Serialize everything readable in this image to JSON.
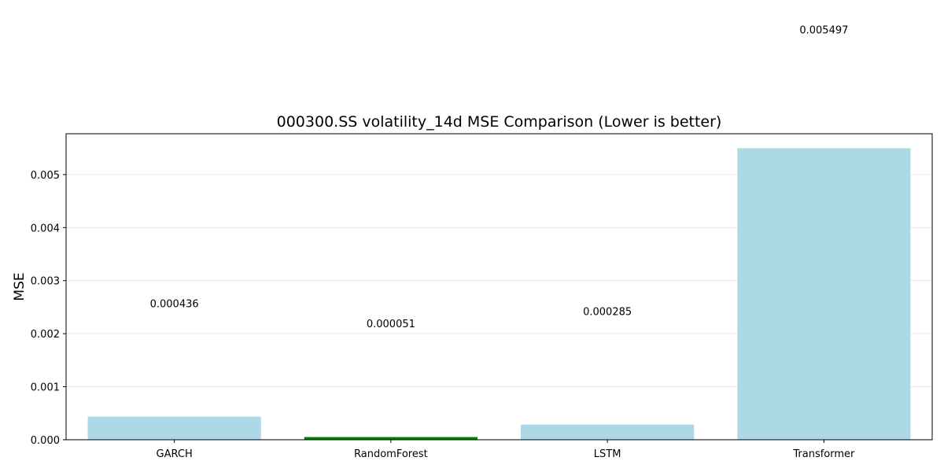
{
  "chart_data": {
    "type": "bar",
    "title": "000300.SS volatility_14d MSE Comparison (Lower is better)",
    "xlabel": "",
    "ylabel": "MSE",
    "categories": [
      "GARCH",
      "RandomForest",
      "LSTM",
      "Transformer"
    ],
    "values": [
      0.000436,
      5.1e-05,
      0.000285,
      0.005497
    ],
    "value_labels": [
      "0.000436",
      "0.000051",
      "0.000285",
      "0.005497"
    ],
    "label_positions": [
      0.0025,
      0.00212,
      0.00235,
      0.00766
    ],
    "bar_colors": [
      "#add8e6",
      "#008000",
      "#add8e6",
      "#add8e6"
    ],
    "ylim": [
      0,
      0.00577
    ],
    "yticks": [
      0.0,
      0.001,
      0.002,
      0.003,
      0.004,
      0.005
    ],
    "ytick_labels": [
      "0.000",
      "0.001",
      "0.002",
      "0.003",
      "0.004",
      "0.005"
    ],
    "grid": "horizontal",
    "legend": "none"
  }
}
